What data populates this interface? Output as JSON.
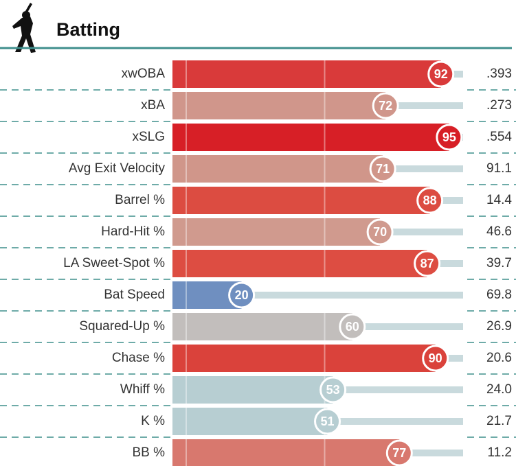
{
  "chart_data": {
    "type": "bar",
    "title": "Batting",
    "categories": [
      "xwOBA",
      "xBA",
      "xSLG",
      "Avg Exit Velocity",
      "Barrel %",
      "Hard-Hit %",
      "LA Sweet-Spot %",
      "Bat Speed",
      "Squared-Up %",
      "Chase %",
      "Whiff %",
      "K %",
      "BB %"
    ],
    "values": [
      92,
      72,
      95,
      71,
      88,
      70,
      87,
      20,
      60,
      90,
      53,
      51,
      77
    ],
    "stats": [
      ".393",
      ".273",
      ".554",
      "91.1",
      "14.4",
      "46.6",
      "39.7",
      "69.8",
      "26.9",
      "20.6",
      "24.0",
      "21.7",
      "11.2"
    ],
    "colors": [
      "#d93a3a",
      "#d0968b",
      "#d71f26",
      "#d0968a",
      "#dc4c41",
      "#d09a8e",
      "#dd4d42",
      "#6f8fc0",
      "#c2bebc",
      "#da423b",
      "#b7ced2",
      "#b7ced2",
      "#d8786e"
    ],
    "xlim": [
      0,
      100
    ]
  }
}
